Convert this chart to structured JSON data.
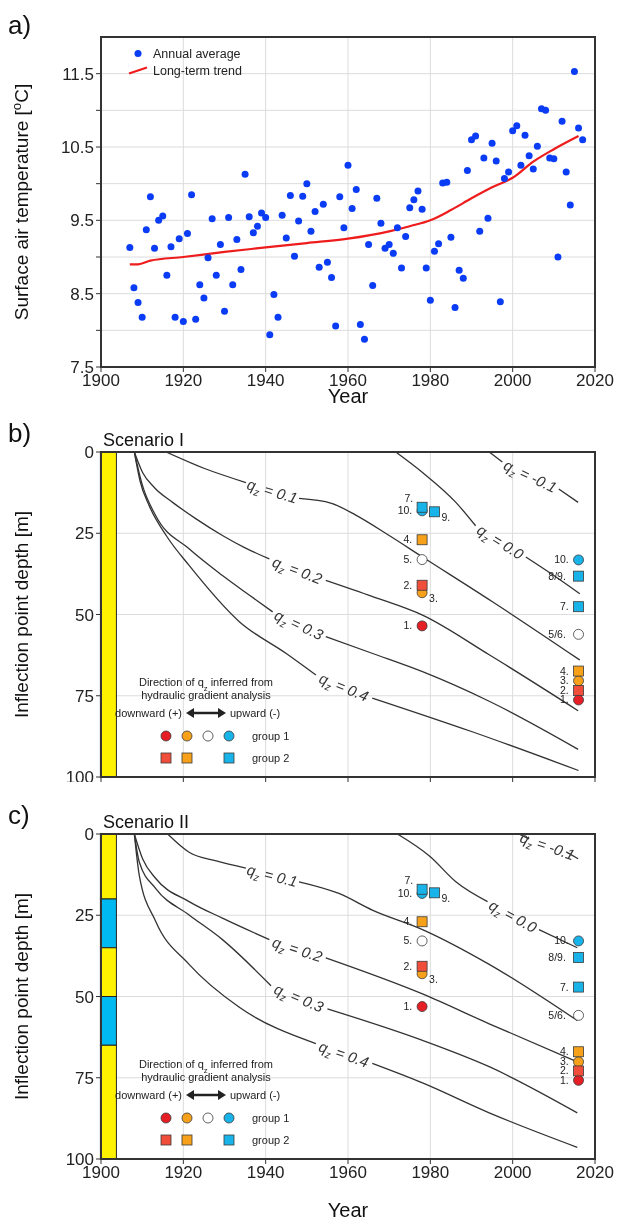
{
  "chart_data": [
    {
      "type": "scatter",
      "annotations": [
        "a)"
      ],
      "xlabel": "Year",
      "ylabel": "Surface air temperature [$^{o}$C]",
      "xlim": [
        1900,
        2020
      ],
      "xticks": [
        1900,
        1920,
        1940,
        1960,
        1980,
        2000,
        2020
      ],
      "ylim": [
        7.5,
        12
      ],
      "yticks": [
        7.5,
        {
          "value": 8,
          "label": null
        },
        8.5,
        {
          "value": 9,
          "label": null
        },
        9.5,
        {
          "value": 10,
          "label": null
        },
        10.5,
        {
          "value": 11,
          "label": null
        },
        11.5
      ],
      "grid": true,
      "legend": "top left",
      "series": [
        {
          "name": "Annual average",
          "color": "#0a3cf5",
          "marker": "circle",
          "x": [
            1907,
            1908,
            1909,
            1910,
            1911,
            1912,
            1913,
            1914,
            1915,
            1916,
            1917,
            1918,
            1919,
            1920,
            1921,
            1922,
            1923,
            1924,
            1925,
            1926,
            1927,
            1928,
            1929,
            1930,
            1931,
            1932,
            1933,
            1934,
            1935,
            1936,
            1937,
            1938,
            1939,
            1940,
            1941,
            1942,
            1943,
            1944,
            1945,
            1946,
            1947,
            1948,
            1949,
            1950,
            1951,
            1952,
            1953,
            1954,
            1955,
            1956,
            1957,
            1958,
            1959,
            1960,
            1961,
            1962,
            1963,
            1964,
            1965,
            1966,
            1967,
            1968,
            1969,
            1970,
            1971,
            1972,
            1973,
            1974,
            1975,
            1976,
            1977,
            1978,
            1979,
            1980,
            1981,
            1982,
            1983,
            1984,
            1985,
            1986,
            1987,
            1988,
            1989,
            1990,
            1991,
            1992,
            1993,
            1994,
            1995,
            1996,
            1997,
            1998,
            1999,
            2000,
            2001,
            2002,
            2003,
            2004,
            2005,
            2006,
            2007,
            2008,
            2009,
            2010,
            2011,
            2012,
            2013,
            2014,
            2015,
            2016,
            2017
          ],
          "values": [
            9.13,
            8.58,
            8.38,
            8.18,
            9.37,
            9.82,
            9.12,
            9.5,
            9.56,
            8.75,
            9.14,
            8.18,
            9.25,
            8.12,
            9.32,
            9.85,
            8.15,
            8.62,
            8.44,
            8.99,
            9.52,
            8.75,
            9.17,
            8.26,
            9.54,
            8.62,
            9.24,
            8.83,
            10.13,
            9.55,
            9.33,
            9.42,
            9.6,
            9.54,
            7.94,
            8.49,
            8.18,
            9.57,
            9.26,
            9.84,
            9.01,
            9.49,
            9.83,
            10.0,
            9.35,
            9.62,
            8.86,
            9.72,
            8.93,
            8.72,
            8.06,
            9.82,
            9.4,
            10.25,
            9.66,
            9.92,
            8.08,
            7.88,
            9.17,
            8.61,
            9.8,
            9.46,
            9.12,
            9.17,
            9.05,
            9.4,
            8.85,
            9.28,
            9.67,
            9.78,
            9.9,
            9.65,
            8.85,
            8.41,
            9.08,
            9.18,
            10.01,
            10.02,
            9.27,
            8.31,
            8.82,
            8.71,
            10.18,
            10.6,
            10.65,
            9.35,
            10.35,
            9.53,
            10.55,
            10.31,
            8.39,
            10.07,
            10.16,
            10.72,
            10.79,
            10.25,
            10.66,
            10.38,
            10.2,
            10.51,
            11.02,
            11.0,
            10.35,
            10.34,
            9.0,
            10.85,
            10.16,
            9.71,
            11.53,
            10.76,
            10.6
          ]
        },
        {
          "name": "Long-term trend",
          "type": "line",
          "color": "#ee1c1c",
          "marker": "none",
          "x": [
            1907,
            1909,
            1912,
            1920,
            1930,
            1940,
            1950,
            1960,
            1970,
            1975,
            1980,
            1985,
            1990,
            1995,
            2000,
            2005,
            2010,
            2016
          ],
          "values": [
            8.9,
            8.9,
            8.95,
            9.0,
            9.07,
            9.13,
            9.19,
            9.25,
            9.35,
            9.42,
            9.5,
            9.64,
            9.8,
            9.95,
            10.08,
            10.3,
            10.47,
            10.65
          ]
        }
      ]
    },
    {
      "type": "line",
      "title": "Scenario I",
      "ylabel": "Inflection point depth [m]",
      "xlim": [
        1900,
        2020
      ],
      "xticks": [
        1900,
        1920,
        1940,
        1960,
        1980,
        2000,
        2020
      ],
      "tick_labels": "y",
      "ylim": [
        100,
        0
      ],
      "yticks": [
        0,
        25,
        50,
        75,
        100
      ],
      "grid": true,
      "legend": "bottom left",
      "legend_title": "Direction of q$_{z}$ inferred from hydraulic gradient analysis",
      "annotations": [
        "b)",
        "downward (+)",
        "upward (-)",
        {
          "text": "10.",
          "x": 1978,
          "y": 18.1
        },
        {
          "text": "7.",
          "x": 1978,
          "y": 17
        },
        {
          "text": "9.",
          "x": 1981,
          "y": 18.4
        },
        {
          "text": "4.",
          "x": 1978,
          "y": 27
        },
        {
          "text": "5.",
          "x": 1978,
          "y": 33.1
        },
        {
          "text": "2.",
          "x": 1978,
          "y": 41
        },
        {
          "text": "3.",
          "x": 1978,
          "y": 43.3
        },
        {
          "text": "1.",
          "x": 1978,
          "y": 53.5
        },
        {
          "text": "10.",
          "x": 2016,
          "y": 33.2
        },
        {
          "text": "8/9.",
          "x": 2016,
          "y": 38.2
        },
        {
          "text": "7.",
          "x": 2016,
          "y": 47.6
        },
        {
          "text": "5/6.",
          "x": 2016,
          "y": 56.1
        },
        {
          "text": "4.",
          "x": 2016,
          "y": 67.4
        },
        {
          "text": "3.",
          "x": 2016,
          "y": 70.4
        },
        {
          "text": "2.",
          "x": 2016,
          "y": 73.4
        },
        {
          "text": "1.",
          "x": 2016,
          "y": 76.3
        }
      ],
      "series": [
        {
          "type": "bar",
          "x": [
            1901.8
          ],
          "base": [
            0
          ],
          "values": [
            100
          ],
          "colors": [
            "#fff200"
          ]
        },
        {
          "name": "q$_{z}$ = -0.1",
          "color": "#333333",
          "x": [
            1994.3,
            1997.5,
            2004,
            2011.2,
            2015.9
          ],
          "values": [
            0,
            3.1,
            null,
            11.4,
            15.5
          ]
        },
        {
          "name": "q$_{z}$ = 0.0",
          "color": "#333333",
          "x": [
            1971.6,
            1978.1,
            1986.2,
            1991,
            1997,
            2003.2,
            2010,
            2016.3
          ],
          "values": [
            0,
            6.3,
            15.5,
            22.7,
            null,
            32.3,
            38,
            43.6
          ]
        },
        {
          "name": "q$_{z}$ = 0.1",
          "color": "#333333",
          "x": [
            1915.8,
            1925,
            1935.2,
            1941,
            1948.1,
            1956,
            1962,
            1970,
            1978.1,
            1995,
            2016.3
          ],
          "values": [
            0,
            5,
            9.4,
            null,
            14.3,
            15.8,
            19.5,
            25.7,
            32.3,
            46,
            64
          ]
        },
        {
          "name": "q$_{z}$ = 0.2",
          "color": "#333333",
          "x": [
            1908.1,
            1910.1,
            1913,
            1917.4,
            1923,
            1929.5,
            1935,
            1940.9,
            1947,
            1954.6,
            1966,
            1978.1,
            1994.3,
            2015.9
          ],
          "values": [
            0,
            6.3,
            11,
            15.5,
            20.5,
            25.7,
            29.5,
            32.9,
            null,
            39.5,
            44.5,
            50.2,
            62.4,
            79.6
          ]
        },
        {
          "name": "q$_{z}$ = 0.3",
          "color": "#333333",
          "x": [
            1908.1,
            1910,
            1913.3,
            1921.4,
            1929.5,
            1936,
            1941.7,
            1948,
            1954.6,
            1966,
            1978.1,
            1994.3,
            2015.9
          ],
          "values": [
            0,
            10,
            19.6,
            29.8,
            38,
            44,
            49.2,
            null,
            56.8,
            62,
            67.6,
            76.7,
            91.5
          ]
        },
        {
          "name": "q$_{z}$ = 0.4",
          "color": "#333333",
          "x": [
            1908.1,
            1909.5,
            1911.7,
            1916,
            1921.4,
            1933.6,
            1945,
            1952.2,
            1959,
            1965.9,
            1990,
            2016
          ],
          "values": [
            0,
            9,
            16.5,
            26,
            34.9,
            52.2,
            62,
            68.6,
            null,
            75.7,
            86,
            98
          ]
        },
        {
          "name": "group 1",
          "type": "scatter",
          "marker": "circle",
          "x": [
            1978,
            1978,
            1978,
            1978,
            2016,
            2016,
            2016,
            2016
          ],
          "values": [
            53.5,
            43.3,
            33.1,
            18.1,
            76.3,
            70.4,
            56.1,
            33.2
          ],
          "colors": [
            "#e61e25",
            "#f7a11a",
            "#ffffff",
            "#18b4e9",
            "#e61e25",
            "#f7a11a",
            "#ffffff",
            "#18b4e9"
          ]
        },
        {
          "name": "group 2",
          "type": "scatter",
          "marker": "square",
          "x": [
            1978,
            1978,
            1978,
            1981,
            2016,
            2016,
            2016,
            2016
          ],
          "values": [
            41,
            27,
            17,
            18.4,
            73.4,
            67.4,
            38.2,
            47.6
          ],
          "colors": [
            "#f04d3b",
            "#f7a11a",
            "#18b4e9",
            "#18b4e9",
            "#f04d3b",
            "#f7a11a",
            "#18b4e9",
            "#18b4e9"
          ]
        }
      ]
    },
    {
      "type": "line",
      "title": "Scenario II",
      "xlabel": "Year",
      "ylabel": "Inflection point depth [m]",
      "xlim": [
        1900,
        2020
      ],
      "xticks": [
        1900,
        1920,
        1940,
        1960,
        1980,
        2000,
        2020
      ],
      "ylim": [
        100,
        0
      ],
      "yticks": [
        0,
        25,
        50,
        75,
        100
      ],
      "grid": true,
      "legend": "bottom left",
      "legend_title": "Direction of q$_{z}$ inferred from hydraulic gradient analysis",
      "annotations": [
        "c)",
        "downward (+)",
        "upward (-)",
        {
          "text": "10.",
          "x": 1978,
          "y": 18.3
        },
        {
          "text": "7.",
          "x": 1978,
          "y": 17
        },
        {
          "text": "9.",
          "x": 1981,
          "y": 18.1
        },
        {
          "text": "4.",
          "x": 1978,
          "y": 27
        },
        {
          "text": "5.",
          "x": 1978,
          "y": 32.9
        },
        {
          "text": "2.",
          "x": 1978,
          "y": 40.7
        },
        {
          "text": "3.",
          "x": 1978,
          "y": 43
        },
        {
          "text": "1.",
          "x": 1978,
          "y": 53.1
        },
        {
          "text": "10.",
          "x": 2016,
          "y": 32.9
        },
        {
          "text": "8/9.",
          "x": 2016,
          "y": 38
        },
        {
          "text": "7.",
          "x": 2016,
          "y": 47.1
        },
        {
          "text": "5/6.",
          "x": 2016,
          "y": 55.8
        },
        {
          "text": "4.",
          "x": 2016,
          "y": 67
        },
        {
          "text": "3.",
          "x": 2016,
          "y": 70.1
        },
        {
          "text": "2.",
          "x": 2016,
          "y": 72.9
        },
        {
          "text": "1.",
          "x": 2016,
          "y": 75.8
        }
      ],
      "series": [
        {
          "type": "bar",
          "x": [
            1901.8
          ],
          "base": [
            0
          ],
          "values": [
            20
          ],
          "color": "#fff200"
        },
        {
          "type": "bar",
          "x": [
            1901.8
          ],
          "base": [
            20
          ],
          "values": [
            15
          ],
          "color": "#00b9f1"
        },
        {
          "type": "bar",
          "x": [
            1901.8
          ],
          "base": [
            35
          ],
          "values": [
            15
          ],
          "color": "#fff200"
        },
        {
          "type": "bar",
          "x": [
            1901.8
          ],
          "base": [
            50
          ],
          "values": [
            15
          ],
          "color": "#00b9f1"
        },
        {
          "type": "bar",
          "x": [
            1901.8
          ],
          "base": [
            65
          ],
          "values": [
            35
          ],
          "color": "#fff200"
        },
        {
          "name": "q$_{z}$ = -0.1",
          "color": "#333333",
          "x": [
            2001.5,
            2004,
            2009,
            2013,
            2015.9
          ],
          "values": [
            0,
            1.5,
            null,
            5.5,
            7.6
          ]
        },
        {
          "name": "q$_{z}$ = 0.0",
          "color": "#333333",
          "x": [
            1972,
            1980,
            1986.2,
            1993.9,
            2000,
            2006.4,
            2015.7
          ],
          "values": [
            0,
            7,
            14.7,
            20.8,
            null,
            29.4,
            35
          ]
        },
        {
          "name": "q$_{z}$ = 0.1",
          "color": "#333333",
          "x": [
            1916.2,
            1921.4,
            1928,
            1935.2,
            1941,
            1948.1,
            1957.8,
            1965.9,
            1978.1,
            1994.3,
            2015.7
          ],
          "values": [
            0,
            5.6,
            8.3,
            10.5,
            null,
            14.7,
            18.3,
            23.4,
            29.4,
            40.1,
            57.4
          ]
        },
        {
          "name": "q$_{z}$ = 0.2",
          "color": "#333333",
          "x": [
            1908.1,
            1910.1,
            1913.3,
            1921.4,
            1929.5,
            1940.9,
            1948,
            1954.6,
            1978.1,
            1994.3,
            2015.7
          ],
          "values": [
            0,
            7.6,
            13.7,
            20.8,
            25.9,
            32.5,
            null,
            38.1,
            49.2,
            58.4,
            70.1
          ]
        },
        {
          "name": "q$_{z}$ = 0.3",
          "color": "#333333",
          "x": [
            1908.1,
            1909.3,
            1913.3,
            1921.4,
            1929.5,
            1941.3,
            1948,
            1955,
            1978.1,
            1994.3,
            2015.7
          ],
          "values": [
            0,
            8.6,
            16.8,
            24.9,
            32.5,
            46.7,
            null,
            53.8,
            63.5,
            71.6,
            85.8
          ]
        },
        {
          "name": "q$_{z}$ = 0.4",
          "color": "#333333",
          "x": [
            1908.1,
            1909.3,
            1913.3,
            1921.4,
            1933.6,
            1952.2,
            1959,
            1965.9,
            1978.1,
            1994.3,
            2015.7
          ],
          "values": [
            0,
            12.7,
            26.9,
            40.1,
            53.3,
            64.5,
            null,
            70.6,
            76.6,
            85.8,
            96.4
          ]
        },
        {
          "name": "group 1",
          "type": "scatter",
          "marker": "circle",
          "x": [
            1978,
            1978,
            1978,
            1978,
            2016,
            2016,
            2016,
            2016
          ],
          "values": [
            53.1,
            43,
            32.9,
            18.3,
            75.8,
            70.1,
            55.8,
            32.9
          ],
          "colors": [
            "#e61e25",
            "#f7a11a",
            "#ffffff",
            "#18b4e9",
            "#e61e25",
            "#f7a11a",
            "#ffffff",
            "#18b4e9"
          ]
        },
        {
          "name": "group 2",
          "type": "scatter",
          "marker": "square",
          "x": [
            1978,
            1978,
            1978,
            1981,
            2016,
            2016,
            2016,
            2016
          ],
          "values": [
            40.7,
            27,
            17,
            18.1,
            72.9,
            67,
            38,
            47.1
          ],
          "colors": [
            "#f04d3b",
            "#f7a11a",
            "#18b4e9",
            "#18b4e9",
            "#f04d3b",
            "#f7a11a",
            "#18b4e9",
            "#18b4e9"
          ]
        }
      ]
    }
  ]
}
